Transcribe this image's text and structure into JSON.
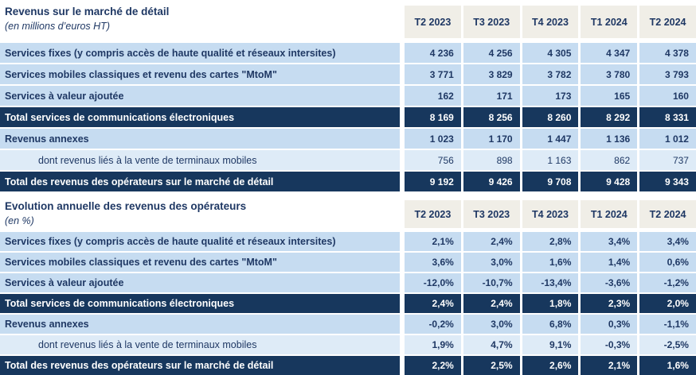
{
  "colors": {
    "navy_total_bg": "#17375D",
    "row_blue_bg": "#C6DCF1",
    "row_light_blue_bg": "#DEEBF7",
    "header_beige_bg": "#F0EEE7",
    "text_navy": "#1F3864",
    "text_white": "#FFFFFF"
  },
  "tables": [
    {
      "title": "Revenus sur le marché de détail",
      "subtitle": "(en millions d’euros HT)",
      "columns": [
        "T2 2023",
        "T3 2023",
        "T4 2023",
        "T1 2024",
        "T2 2024"
      ],
      "rows": [
        {
          "label": "Services fixes (y compris accès de haute qualité et réseaux intersites)",
          "style": "normal",
          "values": [
            "4 236",
            "4 256",
            "4 305",
            "4 347",
            "4 378"
          ]
        },
        {
          "label": "Services mobiles classiques et revenu des cartes \"MtoM\"",
          "style": "normal",
          "values": [
            "3 771",
            "3 829",
            "3 782",
            "3 780",
            "3 793"
          ]
        },
        {
          "label": "Services à valeur ajoutée",
          "style": "normal",
          "values": [
            "162",
            "171",
            "173",
            "165",
            "160"
          ]
        },
        {
          "label": "Total services de communications électroniques",
          "style": "total",
          "values": [
            "8 169",
            "8 256",
            "8 260",
            "8 292",
            "8 331"
          ]
        },
        {
          "label": "Revenus annexes",
          "style": "normal",
          "values": [
            "1 023",
            "1 170",
            "1 447",
            "1 136",
            "1 012"
          ]
        },
        {
          "label": "dont revenus liés à la vente de terminaux mobiles",
          "style": "sub",
          "values": [
            "756",
            "898",
            "1 163",
            "862",
            "737"
          ]
        },
        {
          "label": "Total des revenus des opérateurs sur le marché de détail",
          "style": "total",
          "values": [
            "9 192",
            "9 426",
            "9 708",
            "9 428",
            "9 343"
          ]
        }
      ]
    },
    {
      "title": "Evolution annuelle des revenus des opérateurs",
      "subtitle": "(en %)",
      "columns": [
        "T2 2023",
        "T3 2023",
        "T4 2023",
        "T1 2024",
        "T2 2024"
      ],
      "rows": [
        {
          "label": "Services fixes (y compris accès de haute qualité et réseaux intersites)",
          "style": "normal",
          "values": [
            "2,1%",
            "2,4%",
            "2,8%",
            "3,4%",
            "3,4%"
          ]
        },
        {
          "label": "Services mobiles classiques et revenu des cartes \"MtoM\"",
          "style": "normal",
          "values": [
            "3,6%",
            "3,0%",
            "1,6%",
            "1,4%",
            "0,6%"
          ]
        },
        {
          "label": "Services à valeur ajoutée",
          "style": "normal",
          "values": [
            "-12,0%",
            "-10,7%",
            "-13,4%",
            "-3,6%",
            "-1,2%"
          ]
        },
        {
          "label": "Total services de communications électroniques",
          "style": "total",
          "values": [
            "2,4%",
            "2,4%",
            "1,8%",
            "2,3%",
            "2,0%"
          ]
        },
        {
          "label": "Revenus annexes",
          "style": "normal",
          "values": [
            "-0,2%",
            "3,0%",
            "6,8%",
            "0,3%",
            "-1,1%"
          ]
        },
        {
          "label": "dont revenus liés à la vente de terminaux mobiles",
          "style": "sub-bold",
          "values": [
            "1,9%",
            "4,7%",
            "9,1%",
            "-0,3%",
            "-2,5%"
          ]
        },
        {
          "label": "Total des revenus des opérateurs sur le marché de détail",
          "style": "total",
          "values": [
            "2,2%",
            "2,5%",
            "2,6%",
            "2,1%",
            "1,6%"
          ]
        }
      ]
    }
  ]
}
